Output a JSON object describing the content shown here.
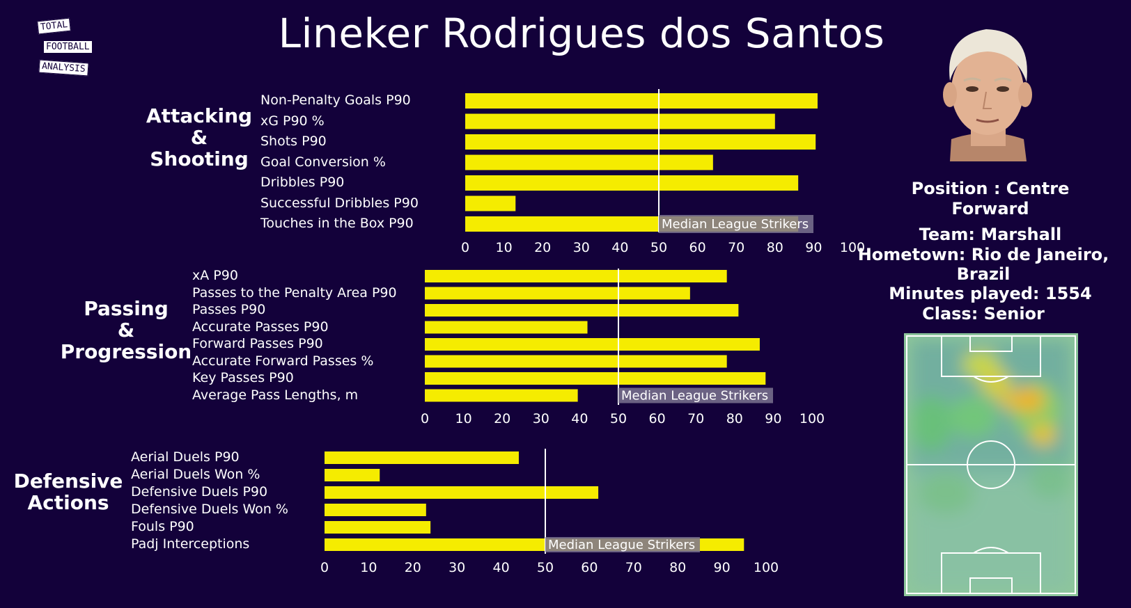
{
  "title": "Lineker Rodrigues dos Santos",
  "logo": {
    "line1": "TOTAL",
    "line2": "FOOTBALL",
    "line3": "ANALYSIS"
  },
  "profile": {
    "position": "Position : Centre",
    "position2": "Forward",
    "team": "Team: Marshall",
    "hometown": "Hometown: Rio de Janeiro,",
    "hometown2": "Brazil",
    "minutes": "Minutes played: 1554",
    "class": "Class: Senior"
  },
  "colors": {
    "background": "#13013a",
    "bar": "#f5ec00",
    "median_line": "#ffffff",
    "median_box": "#7b7391"
  },
  "chart_data": [
    {
      "type": "bar",
      "orientation": "horizontal",
      "section": "Attacking & Shooting",
      "section_lines": [
        "Attacking",
        "&",
        "Shooting"
      ],
      "categories": [
        "Non-Penalty Goals P90",
        "xG P90 %",
        "Shots P90",
        "Goal Conversion %",
        "Dribbles P90",
        "Successful Dribbles P90",
        "Touches in the Box P90"
      ],
      "values": [
        91,
        80,
        90.5,
        64,
        86,
        13,
        86
      ],
      "xlim": [
        0,
        100
      ],
      "xticks": [
        "0",
        "10",
        "20",
        "30",
        "40",
        "50",
        "60",
        "70",
        "80",
        "90",
        "100"
      ],
      "median": 50,
      "median_label": "Median League Strikers"
    },
    {
      "type": "bar",
      "orientation": "horizontal",
      "section": "Passing & Progression",
      "section_lines": [
        "Passing",
        "&",
        "Progression"
      ],
      "categories": [
        "xA P90",
        "Passes to the Penalty Area P90",
        "Passes P90",
        "Accurate Passes P90",
        "Forward Passes P90",
        "Accurate Forward Passes %",
        "Key Passes P90",
        "Average Pass Lengths, m"
      ],
      "values": [
        78,
        68.5,
        81,
        42,
        86.5,
        78,
        88,
        39.5
      ],
      "xlim": [
        0,
        100
      ],
      "xticks": [
        "0",
        "10",
        "20",
        "30",
        "40",
        "50",
        "60",
        "70",
        "80",
        "90",
        "100"
      ],
      "median": 50,
      "median_label": "Median League Strikers"
    },
    {
      "type": "bar",
      "orientation": "horizontal",
      "section": "Defensive Actions",
      "section_lines": [
        "Defensive",
        "Actions"
      ],
      "categories": [
        "Aerial Duels P90",
        "Aerial Duels Won %",
        "Defensive Duels P90",
        "Defensive Duels Won %",
        "Fouls P90",
        "Padj Interceptions"
      ],
      "values": [
        44,
        12.5,
        62,
        23,
        24,
        95
      ],
      "xlim": [
        0,
        100
      ],
      "xticks": [
        "0",
        "10",
        "20",
        "30",
        "40",
        "50",
        "60",
        "70",
        "80",
        "90",
        "100"
      ],
      "median": 50,
      "median_label": "Median League Strikers"
    }
  ]
}
